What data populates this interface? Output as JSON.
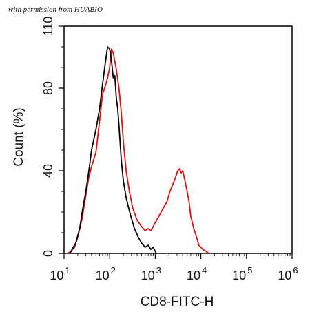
{
  "watermark": "with permission from HUABIO",
  "chart_data": {
    "type": "line",
    "title": "",
    "xlabel": "CD8-FITC-H",
    "ylabel": "Count (%)",
    "xscale": "log",
    "xlim": [
      10,
      1000000
    ],
    "ylim": [
      0,
      110
    ],
    "grid": false,
    "legend": "none",
    "x_ticks": [
      {
        "value": 10,
        "base": "10",
        "exp": "1"
      },
      {
        "value": 100,
        "base": "10",
        "exp": "2"
      },
      {
        "value": 1000,
        "base": "10",
        "exp": "3"
      },
      {
        "value": 10000,
        "base": "10",
        "exp": "4"
      },
      {
        "value": 100000,
        "base": "10",
        "exp": "5"
      },
      {
        "value": 1000000,
        "base": "10",
        "exp": "6"
      }
    ],
    "y_ticks": [
      {
        "value": 0,
        "label": "0"
      },
      {
        "value": 40,
        "label": "40"
      },
      {
        "value": 80,
        "label": "80"
      },
      {
        "value": 110,
        "label": "110"
      }
    ],
    "series": [
      {
        "color": "#000000",
        "x": [
          13.5,
          15,
          18,
          22,
          25,
          30,
          35,
          40,
          50,
          60,
          70,
          80,
          90,
          100,
          110,
          120,
          130,
          140,
          150,
          160,
          180,
          200,
          230,
          260,
          300,
          350,
          420,
          500,
          600,
          700,
          800,
          900,
          1000,
          1050
        ],
        "y": [
          0,
          2,
          5,
          12,
          20,
          30,
          40,
          50,
          60,
          70,
          82,
          92,
          100,
          99,
          93,
          85,
          86,
          75,
          70,
          62,
          45,
          35,
          27,
          22,
          17,
          12,
          8,
          5,
          3,
          4,
          2,
          3,
          1,
          0
        ]
      },
      {
        "color": "#dd1111",
        "x": [
          12,
          14,
          17,
          20,
          25,
          30,
          35,
          40,
          50,
          60,
          70,
          80,
          90,
          100,
          110,
          120,
          130,
          140,
          160,
          180,
          200,
          230,
          270,
          320,
          400,
          500,
          600,
          700,
          800,
          900,
          1000,
          1200,
          1500,
          1800,
          2100,
          2500,
          2800,
          3100,
          3400,
          3700,
          4000,
          4500,
          5000,
          5500,
          6000,
          7000,
          8000,
          9000,
          10000,
          11000,
          13000,
          15000
        ],
        "y": [
          0,
          1,
          3,
          8,
          17,
          28,
          37,
          42,
          49,
          64,
          77,
          81,
          85,
          90,
          99,
          97,
          93,
          89,
          80,
          68,
          54,
          40,
          30,
          22,
          16,
          13,
          11,
          12,
          11,
          13,
          15,
          18,
          22,
          25,
          30,
          34,
          37,
          40,
          41,
          39,
          40,
          35,
          30,
          25,
          18,
          12,
          8,
          4,
          3,
          2,
          1,
          0
        ]
      }
    ]
  }
}
